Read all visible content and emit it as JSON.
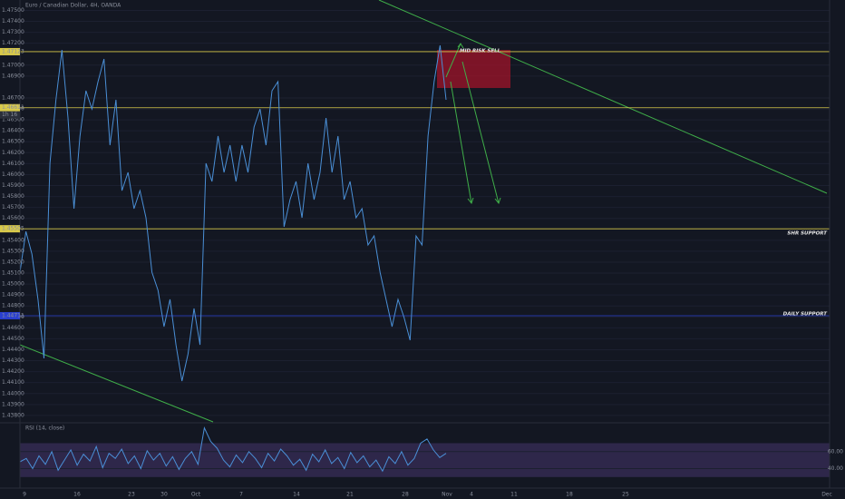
{
  "title": "Euro / Canadian Dollar, 4H, OANDA",
  "x_labels": [
    "9",
    "16",
    "23",
    "30",
    "Oct",
    "7",
    "14",
    "21",
    "28",
    "Nov",
    "4",
    "11",
    "18",
    "25",
    "Dec"
  ],
  "annotations": [
    "MID RISK SELL",
    "SHR SUPPORT",
    "DAILY SUPPORT"
  ],
  "countdown": "1h 16",
  "chart_data": [
    {
      "type": "line",
      "color": "#4a8fd6",
      "values": [
        1.45108,
        1.45481,
        1.45274,
        1.4486,
        1.44321,
        1.46103,
        1.46683,
        1.47139,
        1.46517,
        1.45689,
        1.46352,
        1.46766,
        1.466,
        1.46849,
        1.47056,
        1.46269,
        1.46683,
        1.45854,
        1.4602,
        1.45689,
        1.45854,
        1.45606,
        1.45108,
        1.44943,
        1.44611,
        1.4486,
        1.44445,
        1.44114,
        1.44362,
        1.44777,
        1.44445,
        1.46103,
        1.45937,
        1.46352,
        1.4602,
        1.46269,
        1.45937,
        1.46269,
        1.4602,
        1.46435,
        1.466,
        1.46269,
        1.46766,
        1.46849,
        1.45523,
        1.45772,
        1.45937,
        1.45606,
        1.46103,
        1.45772,
        1.4602,
        1.46517,
        1.4602,
        1.46352,
        1.45772,
        1.45937,
        1.45606,
        1.45689,
        1.45357,
        1.4544,
        1.45108,
        1.4486,
        1.44611,
        1.4486,
        1.44694,
        1.44487,
        1.4544,
        1.45357,
        1.46352,
        1.46849,
        1.47181,
        1.46683
      ],
      "ylim": [
        1.43741,
        1.47595
      ],
      "yticks": [
        {
          "value": 1.438,
          "label": "1.43800"
        },
        {
          "value": 1.439,
          "label": "1.43900"
        },
        {
          "value": 1.44,
          "label": "1.44000"
        },
        {
          "value": 1.441,
          "label": "1.44100"
        },
        {
          "value": 1.442,
          "label": "1.44200"
        },
        {
          "value": 1.443,
          "label": "1.44300"
        },
        {
          "value": 1.444,
          "label": "1.44400"
        },
        {
          "value": 1.445,
          "label": "1.44500"
        },
        {
          "value": 1.446,
          "label": "1.44600"
        },
        {
          "value": 1.447,
          "label": "1.44700"
        },
        {
          "value": 1.448,
          "label": "1.44800"
        },
        {
          "value": 1.449,
          "label": "1.44900"
        },
        {
          "value": 1.45,
          "label": "1.45000"
        },
        {
          "value": 1.451,
          "label": "1.45100"
        },
        {
          "value": 1.452,
          "label": "1.45200"
        },
        {
          "value": 1.453,
          "label": "1.45300"
        },
        {
          "value": 1.454,
          "label": "1.45400"
        },
        {
          "value": 1.456,
          "label": "1.45600"
        },
        {
          "value": 1.457,
          "label": "1.45700"
        },
        {
          "value": 1.458,
          "label": "1.45800"
        },
        {
          "value": 1.459,
          "label": "1.45900"
        },
        {
          "value": 1.46,
          "label": "1.46000"
        },
        {
          "value": 1.461,
          "label": "1.46100"
        },
        {
          "value": 1.462,
          "label": "1.46200"
        },
        {
          "value": 1.463,
          "label": "1.46300"
        },
        {
          "value": 1.464,
          "label": "1.46400"
        },
        {
          "value": 1.465,
          "label": "1.46500"
        },
        {
          "value": 1.466,
          "label": "1.46600"
        },
        {
          "value": 1.467,
          "label": "1.46700"
        },
        {
          "value": 1.469,
          "label": "1.46900"
        },
        {
          "value": 1.47,
          "label": "1.47000"
        },
        {
          "value": 1.472,
          "label": "1.47200"
        },
        {
          "value": 1.473,
          "label": "1.47300"
        },
        {
          "value": 1.474,
          "label": "1.47400"
        },
        {
          "value": 1.475,
          "label": "1.47500"
        }
      ],
      "levels": [
        {
          "value": 1.47123,
          "color": "#d8c94a"
        },
        {
          "value": 1.46611,
          "color": "#d8c94a"
        },
        {
          "value": 1.45505,
          "color": "#d8c94a"
        },
        {
          "value": 1.44711,
          "color": "#2a3fd0"
        }
      ],
      "grid": true
    },
    {
      "type": "line",
      "title": "RSI (14, close)",
      "color": "#4a8fd6",
      "values": [
        48,
        52,
        40,
        55,
        45,
        60,
        38,
        50,
        62,
        44,
        57,
        49,
        66,
        41,
        58,
        52,
        63,
        46,
        55,
        40,
        61,
        50,
        58,
        43,
        54,
        39,
        52,
        60,
        45,
        88,
        72,
        64,
        50,
        42,
        56,
        47,
        60,
        52,
        41,
        58,
        49,
        63,
        55,
        44,
        51,
        38,
        57,
        48,
        62,
        46,
        53,
        40,
        59,
        47,
        55,
        42,
        50,
        37,
        54,
        46,
        60,
        44,
        52,
        70,
        75,
        62,
        53,
        58
      ],
      "ylim": [
        18,
        93
      ],
      "band": [
        30,
        70
      ],
      "yticks": [
        {
          "value": 60,
          "label": "60.00"
        },
        {
          "value": 40,
          "label": "40.00"
        }
      ]
    }
  ]
}
